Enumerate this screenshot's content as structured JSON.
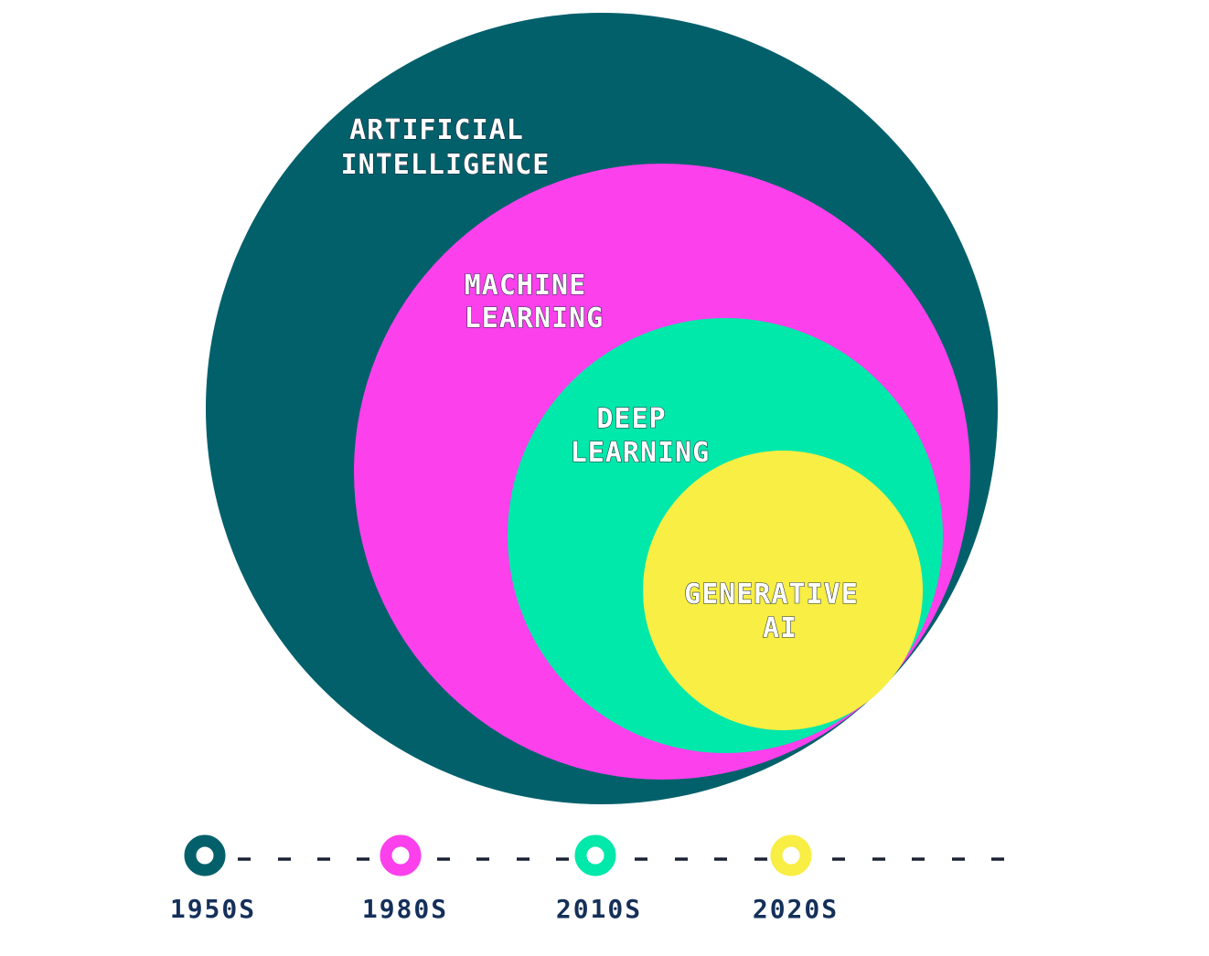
{
  "circles": [
    {
      "id": "ai",
      "label_lines": [
        "ARTIFICIAL",
        "INTELLIGENCE"
      ],
      "color": "#02606b"
    },
    {
      "id": "ml",
      "label_lines": [
        "MACHINE",
        "LEARNING"
      ],
      "color": "#fb40ec"
    },
    {
      "id": "dl",
      "label_lines": [
        "DEEP",
        "LEARNING"
      ],
      "color": "#00e8aa"
    },
    {
      "id": "genai",
      "label_lines": [
        "GENERATIVE",
        "AI"
      ],
      "color": "#f8ee44"
    }
  ],
  "timeline": {
    "eras": [
      {
        "label": "1950S",
        "color": "#02606b"
      },
      {
        "label": "1980S",
        "color": "#fb40ec"
      },
      {
        "label": "2010S",
        "color": "#00e8aa"
      },
      {
        "label": "2020S",
        "color": "#f8ee44"
      }
    ]
  }
}
